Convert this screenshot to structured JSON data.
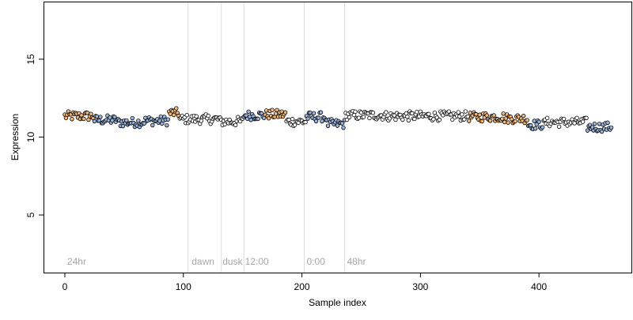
{
  "chart_data": {
    "type": "scatter",
    "title": "",
    "xlabel": "Sample index",
    "ylabel": "Expression",
    "xlim": [
      -18,
      478
    ],
    "ylim": [
      1.3,
      18.7
    ],
    "xticks": [
      0,
      100,
      200,
      300,
      400
    ],
    "yticks": [
      5,
      10,
      15
    ],
    "grid": false,
    "legend": "none",
    "n_points": 462,
    "colors": {
      "point_stroke": "#000000",
      "fill_orange": "#f5b878",
      "fill_blue": "#9ab5e0",
      "fill_white": "#ffffff",
      "divider": "#dddddd",
      "annotation": "#a6a6a6"
    },
    "segments": [
      {
        "from": 0,
        "to": 24,
        "level": 11.35,
        "fill": "orange"
      },
      {
        "from": 25,
        "to": 44,
        "level": 11.1,
        "fill": "blue"
      },
      {
        "from": 45,
        "to": 66,
        "level": 10.95,
        "fill": "blue"
      },
      {
        "from": 67,
        "to": 87,
        "level": 11.05,
        "fill": "blue"
      },
      {
        "from": 88,
        "to": 96,
        "level": 11.55,
        "fill": "orange"
      },
      {
        "from": 97,
        "to": 130,
        "level": 11.15,
        "fill": "white"
      },
      {
        "from": 131,
        "to": 150,
        "level": 11.0,
        "fill": "white"
      },
      {
        "from": 151,
        "to": 168,
        "level": 11.4,
        "fill": "blue"
      },
      {
        "from": 169,
        "to": 186,
        "level": 11.45,
        "fill": "orange"
      },
      {
        "from": 187,
        "to": 203,
        "level": 11.0,
        "fill": "white"
      },
      {
        "from": 204,
        "to": 220,
        "level": 11.3,
        "fill": "blue"
      },
      {
        "from": 221,
        "to": 236,
        "level": 10.85,
        "fill": "blue"
      },
      {
        "from": 237,
        "to": 270,
        "level": 11.4,
        "fill": "white"
      },
      {
        "from": 271,
        "to": 300,
        "level": 11.35,
        "fill": "white"
      },
      {
        "from": 301,
        "to": 340,
        "level": 11.35,
        "fill": "white"
      },
      {
        "from": 341,
        "to": 370,
        "level": 11.3,
        "fill": "orange"
      },
      {
        "from": 371,
        "to": 390,
        "level": 11.2,
        "fill": "orange"
      },
      {
        "from": 391,
        "to": 404,
        "level": 10.8,
        "fill": "blue"
      },
      {
        "from": 405,
        "to": 440,
        "level": 10.95,
        "fill": "white"
      },
      {
        "from": 441,
        "to": 461,
        "level": 10.65,
        "fill": "blue"
      }
    ],
    "dividers": [
      104,
      132,
      151,
      202,
      236
    ],
    "annotations": [
      {
        "text": "24hr",
        "x": 2
      },
      {
        "text": "dawn",
        "x": 107
      },
      {
        "text": "dusk",
        "x": 133
      },
      {
        "text": "12:00",
        "x": 152
      },
      {
        "text": "0:00",
        "x": 204
      },
      {
        "text": "48hr",
        "x": 238
      }
    ],
    "annotation_y": 2.0
  }
}
